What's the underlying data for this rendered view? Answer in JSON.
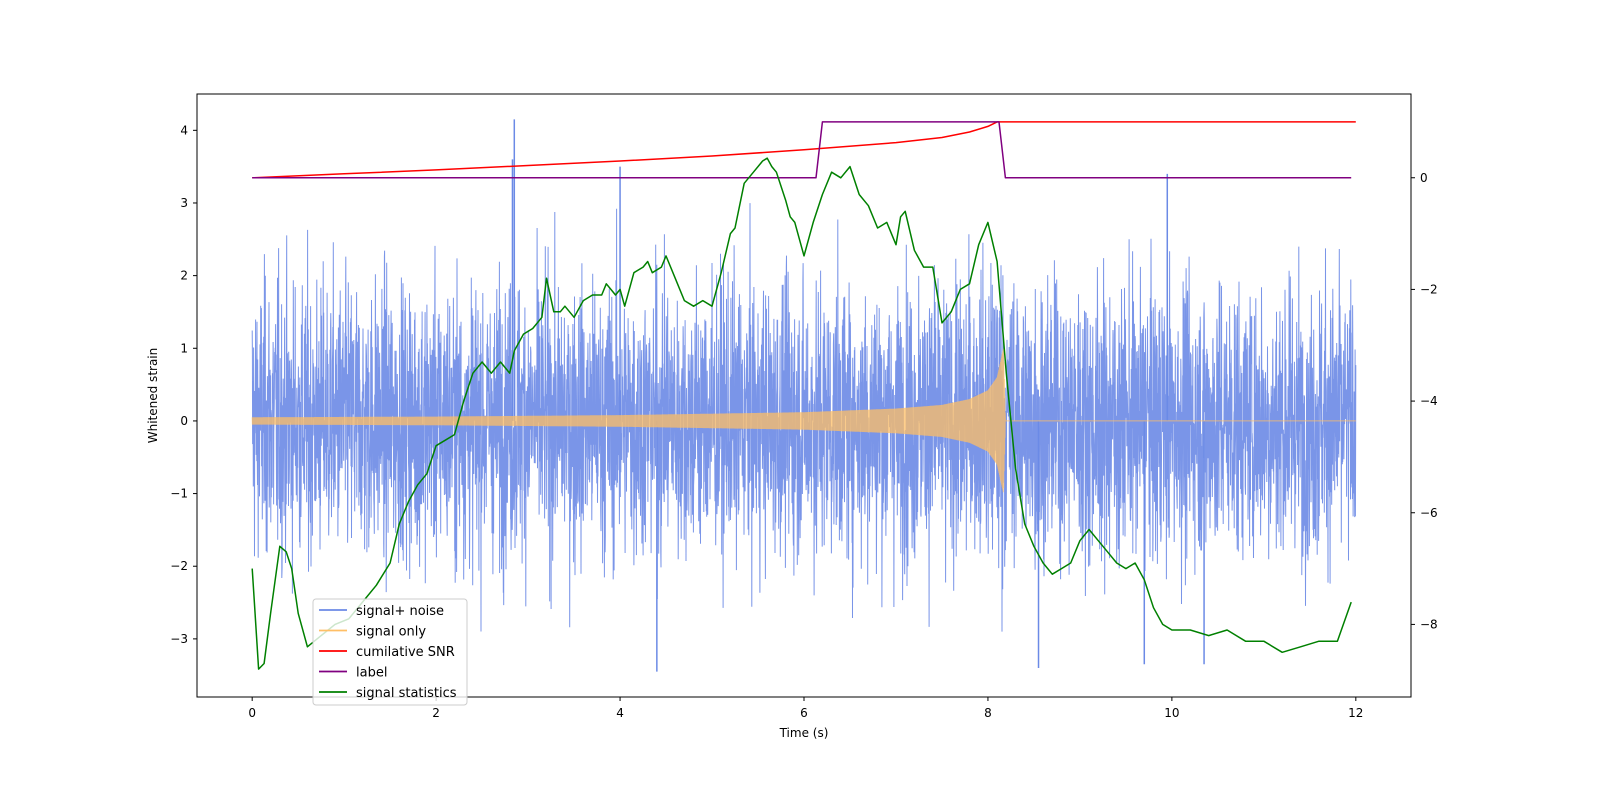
{
  "chart_data": {
    "type": "line",
    "title": "",
    "xlabel": "Time (s)",
    "ylabel": "Whitened strain",
    "xlim": [
      -0.6,
      12.6
    ],
    "ylim": [
      -3.8,
      4.5
    ],
    "y2lim": [
      -9.3,
      1.5
    ],
    "grid": false,
    "legend_position": "bottom-left",
    "x_ticks": [
      0,
      2,
      4,
      6,
      8,
      10,
      12
    ],
    "y_ticks": [
      -3,
      -2,
      -1,
      0,
      1,
      2,
      3,
      4
    ],
    "y2_ticks": [
      0,
      -2,
      -4,
      -6,
      -8
    ],
    "x_tick_labels": [
      "0",
      "2",
      "4",
      "6",
      "8",
      "10",
      "12"
    ],
    "y_tick_labels": [
      "−3",
      "−2",
      "−1",
      "0",
      "1",
      "2",
      "3",
      "4"
    ],
    "y2_tick_labels": [
      "0",
      "−2",
      "−4",
      "−6",
      "−8"
    ],
    "series": [
      {
        "name": "signal+ noise",
        "color": "#6b8ae6",
        "axis": "left",
        "x_range": [
          0,
          12
        ],
        "typical_band": [
          -1.7,
          1.7
        ],
        "max_excursions": [
          {
            "x": 2.85,
            "y": 4.15
          },
          {
            "x": 2.83,
            "y": 3.6
          },
          {
            "x": 4.0,
            "y": 3.5
          },
          {
            "x": 9.95,
            "y": 3.4
          },
          {
            "x": 4.4,
            "y": -3.45
          },
          {
            "x": 10.35,
            "y": -3.35
          },
          {
            "x": 8.55,
            "y": -3.4
          },
          {
            "x": 9.7,
            "y": -3.35
          }
        ]
      },
      {
        "name": "signal only",
        "color": "#ffbf66",
        "axis": "left",
        "x_range": [
          0,
          12
        ],
        "amplitude_envelope": [
          {
            "x": 0,
            "y": 0.05
          },
          {
            "x": 2,
            "y": 0.06
          },
          {
            "x": 4,
            "y": 0.08
          },
          {
            "x": 6,
            "y": 0.12
          },
          {
            "x": 7,
            "y": 0.17
          },
          {
            "x": 7.5,
            "y": 0.22
          },
          {
            "x": 7.8,
            "y": 0.3
          },
          {
            "x": 8.0,
            "y": 0.42
          },
          {
            "x": 8.1,
            "y": 0.6
          },
          {
            "x": 8.17,
            "y": 1.0
          },
          {
            "x": 8.19,
            "y": 0.0
          },
          {
            "x": 12,
            "y": 0.0
          }
        ]
      },
      {
        "name": "cumilative SNR",
        "color": "#ff0000",
        "axis": "right",
        "x": [
          0,
          1,
          2,
          3,
          4,
          5,
          6,
          7,
          7.5,
          7.8,
          8.0,
          8.1,
          8.18,
          9,
          10,
          11,
          12
        ],
        "y": [
          0.0,
          0.07,
          0.14,
          0.22,
          0.3,
          0.39,
          0.5,
          0.63,
          0.72,
          0.82,
          0.92,
          1.0,
          1.0,
          1.0,
          1.0,
          1.0,
          1.0
        ]
      },
      {
        "name": "label",
        "color": "#800080",
        "axis": "right",
        "x": [
          0,
          6.13,
          6.2,
          8.12,
          8.19,
          11.95
        ],
        "y": [
          0,
          0,
          1,
          1,
          0,
          0
        ]
      },
      {
        "name": "signal statistics",
        "color": "#008000",
        "axis": "right",
        "x": [
          0.0,
          0.02,
          0.07,
          0.13,
          0.2,
          0.3,
          0.37,
          0.43,
          0.5,
          0.6,
          0.75,
          0.9,
          1.05,
          1.2,
          1.35,
          1.5,
          1.6,
          1.7,
          1.8,
          1.9,
          2.0,
          2.1,
          2.2,
          2.3,
          2.4,
          2.5,
          2.6,
          2.7,
          2.8,
          2.85,
          2.95,
          3.05,
          3.15,
          3.2,
          3.28,
          3.35,
          3.4,
          3.5,
          3.6,
          3.7,
          3.8,
          3.85,
          3.9,
          3.95,
          4.0,
          4.05,
          4.15,
          4.25,
          4.3,
          4.35,
          4.45,
          4.5,
          4.6,
          4.7,
          4.8,
          4.9,
          5.0,
          5.1,
          5.2,
          5.25,
          5.35,
          5.45,
          5.55,
          5.6,
          5.65,
          5.7,
          5.8,
          5.85,
          5.9,
          6.0,
          6.1,
          6.2,
          6.3,
          6.4,
          6.5,
          6.6,
          6.7,
          6.8,
          6.9,
          7.0,
          7.05,
          7.1,
          7.2,
          7.3,
          7.4,
          7.5,
          7.6,
          7.7,
          7.8,
          7.9,
          8.0,
          8.1,
          8.2,
          8.3,
          8.4,
          8.5,
          8.6,
          8.7,
          8.8,
          8.9,
          9.0,
          9.1,
          9.2,
          9.3,
          9.4,
          9.5,
          9.6,
          9.7,
          9.8,
          9.9,
          10.0,
          10.2,
          10.4,
          10.6,
          10.8,
          11.0,
          11.2,
          11.4,
          11.6,
          11.8,
          11.95
        ],
        "y": [
          -7.0,
          -7.5,
          -8.8,
          -8.7,
          -7.8,
          -6.6,
          -6.7,
          -7.0,
          -7.8,
          -8.4,
          -8.2,
          -8.0,
          -7.9,
          -7.6,
          -7.3,
          -6.9,
          -6.2,
          -5.8,
          -5.5,
          -5.3,
          -4.8,
          -4.7,
          -4.6,
          -4.0,
          -3.5,
          -3.3,
          -3.5,
          -3.3,
          -3.5,
          -3.1,
          -2.8,
          -2.7,
          -2.5,
          -1.8,
          -2.4,
          -2.4,
          -2.3,
          -2.5,
          -2.2,
          -2.1,
          -2.1,
          -1.9,
          -2.0,
          -2.1,
          -2.0,
          -2.3,
          -1.7,
          -1.6,
          -1.5,
          -1.7,
          -1.6,
          -1.4,
          -1.8,
          -2.2,
          -2.3,
          -2.2,
          -2.3,
          -1.7,
          -1.0,
          -0.9,
          -0.1,
          0.1,
          0.3,
          0.35,
          0.2,
          0.1,
          -0.4,
          -0.7,
          -0.8,
          -1.4,
          -0.8,
          -0.3,
          0.1,
          0.0,
          0.2,
          -0.3,
          -0.5,
          -0.9,
          -0.8,
          -1.2,
          -0.7,
          -0.6,
          -1.3,
          -1.6,
          -1.6,
          -2.6,
          -2.4,
          -2.0,
          -1.9,
          -1.2,
          -0.8,
          -1.5,
          -3.5,
          -5.2,
          -6.2,
          -6.6,
          -6.9,
          -7.1,
          -7.0,
          -6.9,
          -6.5,
          -6.3,
          -6.5,
          -6.7,
          -6.9,
          -7.0,
          -6.9,
          -7.2,
          -7.7,
          -8.0,
          -8.1,
          -8.1,
          -8.2,
          -8.1,
          -8.3,
          -8.3,
          -8.5,
          -8.4,
          -8.3,
          -8.3,
          -7.6
        ]
      }
    ],
    "legend": {
      "entries": [
        "signal+ noise",
        "signal only",
        "cumilative SNR",
        "label",
        "signal statistics"
      ],
      "colors": [
        "#6b8ae6",
        "#ffbf66",
        "#ff0000",
        "#800080",
        "#008000"
      ]
    }
  }
}
